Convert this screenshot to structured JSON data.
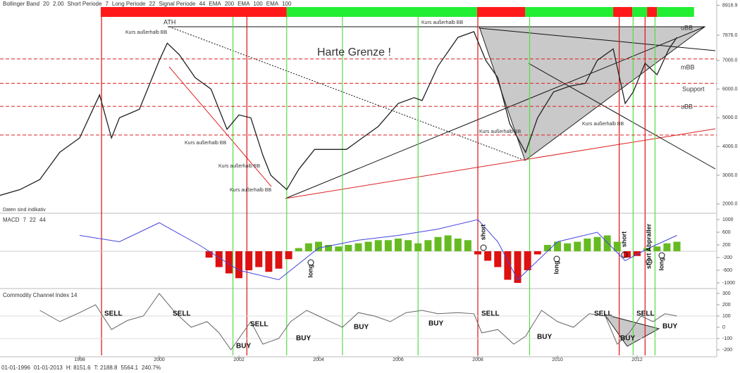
{
  "header": {
    "items": [
      {
        "text": "Bollinger Band",
        "color": "#333333"
      },
      {
        "text": "20",
        "color": "#e07020"
      },
      {
        "text": "2.00",
        "color": "#e07020"
      },
      {
        "text": "Short Periode",
        "color": "#333333"
      },
      {
        "text": "7",
        "color": "#333333"
      },
      {
        "text": "Long Periode",
        "color": "#333333"
      },
      {
        "text": "22",
        "color": "#333333"
      },
      {
        "text": "Signal Periode",
        "color": "#333333"
      },
      {
        "text": "44",
        "color": "#333333"
      },
      {
        "text": "EMA",
        "color": "#333333"
      },
      {
        "text": "200",
        "color": "#cc2222"
      },
      {
        "text": "EMA",
        "color": "#333333"
      },
      {
        "text": "100",
        "color": "#22aa22"
      },
      {
        "text": "EMA",
        "color": "#333333"
      },
      {
        "text": "100",
        "color": "#cc2222"
      }
    ]
  },
  "footer": {
    "items": [
      {
        "text": "01-01-1996",
        "color": "#333333"
      },
      {
        "text": "01-01-2013",
        "color": "#333333"
      },
      {
        "text": "H: 8151.6",
        "color": "#333333"
      },
      {
        "text": "T: 2188.8",
        "color": "#333333"
      },
      {
        "text": "5564.1",
        "color": "#22aa22"
      },
      {
        "text": "240.7%",
        "color": "#22aa22"
      }
    ]
  },
  "chart_data": [
    {
      "type": "line",
      "color": "#222222",
      "xlim": [
        1996,
        2014
      ],
      "ylim": [
        1750,
        8980
      ],
      "yticks": [
        {
          "value": 8916.9,
          "label": "8916.9"
        },
        {
          "value": 7876,
          "label": "7876.0"
        },
        {
          "value": 7000,
          "label": "7000.0"
        },
        {
          "value": 6000,
          "label": "6000.0"
        },
        {
          "value": 5000,
          "label": "5000.0"
        },
        {
          "value": 4000,
          "label": "4000.0"
        },
        {
          "value": 3000,
          "label": "3000.0"
        },
        {
          "value": 2000,
          "label": "2000.0"
        }
      ],
      "x": [
        1996.0,
        1996.5,
        1997.0,
        1997.5,
        1998.0,
        1998.5,
        1998.8,
        1999.0,
        1999.5,
        2000.0,
        2000.2,
        2000.5,
        2000.9,
        2001.3,
        2001.7,
        2002.0,
        2002.3,
        2002.6,
        2002.8,
        2003.2,
        2003.5,
        2003.9,
        2004.3,
        2004.7,
        2005.0,
        2005.5,
        2006.0,
        2006.4,
        2006.6,
        2007.0,
        2007.5,
        2007.9,
        2008.2,
        2008.5,
        2008.8,
        2009.2,
        2009.5,
        2009.9,
        2010.3,
        2010.7,
        2011.0,
        2011.4,
        2011.7,
        2011.9,
        2012.2,
        2012.5,
        2012.8,
        2013.0
      ],
      "values": [
        2300,
        2500,
        2850,
        3800,
        4300,
        5800,
        4300,
        5000,
        5300,
        7000,
        7600,
        7200,
        6400,
        6000,
        4600,
        5100,
        5000,
        3700,
        3000,
        2500,
        3200,
        3900,
        3900,
        3900,
        4200,
        4700,
        5500,
        5700,
        5600,
        6800,
        7800,
        8000,
        7000,
        6400,
        4800,
        3800,
        5000,
        5900,
        6100,
        6200,
        7000,
        7400,
        5500,
        5900,
        6900,
        6500,
        7400,
        7800
      ],
      "levels": [
        7050,
        6200,
        5400,
        4400
      ],
      "level_color": "#dd2222",
      "signal_bar": [
        {
          "from": 1998.53,
          "to": 2003.2,
          "color": "#ff1a1a"
        },
        {
          "from": 2003.2,
          "to": 2007.98,
          "color": "#22ee33"
        },
        {
          "from": 2007.98,
          "to": 2009.19,
          "color": "#ff1a1a"
        },
        {
          "from": 2009.19,
          "to": 2011.4,
          "color": "#22ee33"
        },
        {
          "from": 2011.4,
          "to": 2011.88,
          "color": "#ff1a1a"
        },
        {
          "from": 2011.88,
          "to": 2012.25,
          "color": "#22ee33"
        },
        {
          "from": 2012.25,
          "to": 2012.5,
          "color": "#ff1a1a"
        },
        {
          "from": 2012.5,
          "to": 2013.43,
          "color": "#22ee33"
        }
      ],
      "signal_lines": [
        {
          "x": 1998.55,
          "color": "#dd1111"
        },
        {
          "x": 2001.85,
          "color": "#55dd44"
        },
        {
          "x": 2002.2,
          "color": "#dd1111"
        },
        {
          "x": 2003.2,
          "color": "#55dd44"
        },
        {
          "x": 2004.6,
          "color": "#55dd44"
        },
        {
          "x": 2006.5,
          "color": "#55dd44"
        },
        {
          "x": 2008.0,
          "color": "#dd1111"
        },
        {
          "x": 2009.3,
          "color": "#55dd44"
        },
        {
          "x": 2011.55,
          "color": "#dd1111"
        },
        {
          "x": 2011.9,
          "color": "#55dd44"
        },
        {
          "x": 2012.2,
          "color": "#dd1111"
        },
        {
          "x": 2012.45,
          "color": "#55dd44"
        }
      ],
      "annotations": [
        {
          "text": "ATH",
          "color": "#dd2222"
        },
        {
          "text": "Harte Grenze !",
          "color": "#dd2222"
        },
        {
          "text": "Kurs außerhalb BB",
          "color": "#2222bb"
        },
        {
          "text": "Kurs außerhalb BB",
          "color": "#2222bb"
        },
        {
          "text": "Kurs außerhalb BB",
          "color": "#2222bb"
        },
        {
          "text": "Kurs außerhalb BB",
          "color": "#2222bb"
        },
        {
          "text": "Kurs außerhalb BB",
          "color": "#2222bb"
        },
        {
          "text": "Kurs außerhalb BB",
          "color": "#2222bb"
        },
        {
          "text": "Kurs außerhalb BB",
          "color": "#2222bb"
        },
        {
          "text": "uBB",
          "color": "#2222bb"
        },
        {
          "text": "mBB",
          "color": "#2222bb"
        },
        {
          "text": "Support",
          "color": "#333333"
        },
        {
          "text": "uBB",
          "color": "#2222bb"
        },
        {
          "text": "Daten sind indikativ",
          "color": "#333333"
        }
      ]
    },
    {
      "type": "bar",
      "title": "MACD",
      "params": [
        {
          "text": "7",
          "color": "#dd2222"
        },
        {
          "text": "22",
          "color": "#dd2222"
        },
        {
          "text": "44",
          "color": "#dd2222"
        }
      ],
      "xlim": [
        1996,
        2014
      ],
      "ylim": [
        -1133,
        1155
      ],
      "yticks": [
        1000,
        600,
        200,
        -200,
        -600,
        -1000
      ],
      "x": [
        2001.25,
        2001.5,
        2001.75,
        2002.0,
        2002.25,
        2002.5,
        2002.75,
        2003.0,
        2003.25,
        2003.5,
        2003.75,
        2004.0,
        2004.25,
        2004.5,
        2004.75,
        2005.0,
        2005.25,
        2005.5,
        2005.75,
        2006.0,
        2006.25,
        2006.5,
        2006.75,
        2007.0,
        2007.25,
        2007.5,
        2007.75,
        2008.0,
        2008.25,
        2008.5,
        2008.75,
        2009.0,
        2009.25,
        2009.5,
        2009.75,
        2010.0,
        2010.25,
        2010.5,
        2010.75,
        2011.0,
        2011.25,
        2011.5,
        2011.75,
        2012.0,
        2012.25,
        2012.5,
        2012.75,
        2013.0
      ],
      "values": [
        -200,
        -500,
        -700,
        -850,
        -600,
        -500,
        -650,
        -550,
        -250,
        100,
        250,
        300,
        200,
        150,
        200,
        250,
        300,
        350,
        350,
        400,
        350,
        250,
        350,
        450,
        500,
        400,
        350,
        -100,
        -300,
        -500,
        -900,
        -1000,
        -600,
        -100,
        200,
        300,
        250,
        300,
        400,
        450,
        500,
        300,
        -200,
        -150,
        100,
        150,
        250,
        300
      ],
      "positive_color": "#66bb22",
      "negative_color": "#dd1111",
      "line_x": [
        1998.0,
        1999.0,
        2000.0,
        2001.0,
        2002.0,
        2003.0,
        2004.0,
        2005.0,
        2006.0,
        2007.0,
        2008.0,
        2008.5,
        2009.0,
        2010.0,
        2011.0,
        2011.7,
        2012.3,
        2013.0
      ],
      "line_values": [
        500,
        300,
        900,
        200,
        -600,
        -900,
        100,
        350,
        500,
        700,
        1000,
        300,
        -900,
        300,
        600,
        -300,
        100,
        500
      ],
      "line_color": "#4444dd",
      "annotations": [
        {
          "text": "long"
        },
        {
          "text": "short"
        },
        {
          "text": "long"
        },
        {
          "text": "short"
        },
        {
          "text": "short Abpraller"
        },
        {
          "text": "long"
        }
      ]
    },
    {
      "type": "line",
      "title": "Commodity Channel Index 14",
      "color": "#666666",
      "xlim": [
        1996,
        2014
      ],
      "ylim": [
        -250,
        331
      ],
      "yticks": [
        300,
        200,
        100,
        0,
        -100,
        -200
      ],
      "xticks": [
        1998,
        2000,
        2002,
        2004,
        2006,
        2008,
        2010,
        2012
      ],
      "x": [
        1997.0,
        1997.5,
        1998.0,
        1998.4,
        1998.8,
        1999.2,
        1999.6,
        2000.0,
        2000.4,
        2000.8,
        2001.2,
        2001.5,
        2001.8,
        2002.0,
        2002.3,
        2002.6,
        2003.0,
        2003.3,
        2003.7,
        2004.0,
        2004.3,
        2004.6,
        2005.0,
        2005.4,
        2005.8,
        2006.2,
        2006.6,
        2007.0,
        2007.5,
        2007.9,
        2008.1,
        2008.5,
        2008.9,
        2009.2,
        2009.6,
        2010.0,
        2010.4,
        2010.8,
        2011.2,
        2011.5,
        2011.8,
        2012.1,
        2012.4,
        2012.7,
        2013.0
      ],
      "values": [
        150,
        50,
        130,
        200,
        -20,
        60,
        100,
        300,
        130,
        0,
        50,
        -50,
        -200,
        -100,
        50,
        -150,
        -100,
        50,
        150,
        100,
        50,
        0,
        130,
        100,
        50,
        130,
        150,
        120,
        130,
        120,
        -50,
        -20,
        -150,
        -80,
        150,
        50,
        0,
        120,
        100,
        -150,
        -50,
        100,
        50,
        120,
        100
      ],
      "annotations": [
        {
          "text": "SELL"
        },
        {
          "text": "SELL"
        },
        {
          "text": "SELL"
        },
        {
          "text": "BUY"
        },
        {
          "text": "BUY"
        },
        {
          "text": "BUY"
        },
        {
          "text": "BUY"
        },
        {
          "text": "SELL"
        },
        {
          "text": "BUY"
        },
        {
          "text": "SELL"
        },
        {
          "text": "BUY"
        },
        {
          "text": "SELL"
        },
        {
          "text": "BUY"
        }
      ]
    }
  ]
}
